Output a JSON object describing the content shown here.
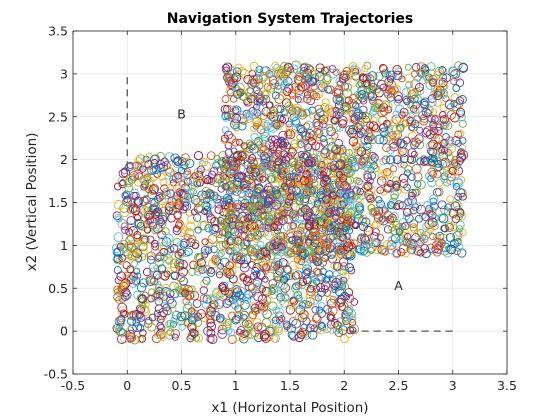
{
  "chart_data": {
    "type": "scatter",
    "title": "Navigation System Trajectories",
    "xlabel": "x1 (Horizontal Position)",
    "ylabel": "x2 (Vertical Position)",
    "xlim": [
      -0.5,
      3.5
    ],
    "ylim": [
      -0.5,
      3.5
    ],
    "xticks": [
      "-0.5",
      "0",
      "0.5",
      "1",
      "1.5",
      "2",
      "2.5",
      "3",
      "3.5"
    ],
    "yticks": [
      "-0.5",
      "0",
      "0.5",
      "1",
      "1.5",
      "2",
      "2.5",
      "3",
      "3.5"
    ],
    "grid": true,
    "marker": "open-circle",
    "series_colors": [
      "#0072BD",
      "#D95319",
      "#EDB120",
      "#7E2F8E",
      "#77AC30",
      "#4DBEEE",
      "#A2142F"
    ],
    "regions": [
      {
        "x": [
          -0.1,
          2.1
        ],
        "y": [
          -0.1,
          2.05
        ]
      },
      {
        "x": [
          0.9,
          3.1
        ],
        "y": [
          0.9,
          3.1
        ]
      }
    ],
    "boundaries": [
      {
        "label": "A",
        "x": [
          2.05,
          3.0
        ],
        "y": [
          0,
          0
        ],
        "style": "dashed"
      },
      {
        "label": "B",
        "x": [
          0,
          0
        ],
        "y": [
          1.9,
          3.0
        ],
        "style": "dashed"
      }
    ],
    "annotations": [
      {
        "text": "A",
        "x": 2.5,
        "y": 0.48
      },
      {
        "text": "B",
        "x": 0.5,
        "y": 2.48
      }
    ]
  }
}
